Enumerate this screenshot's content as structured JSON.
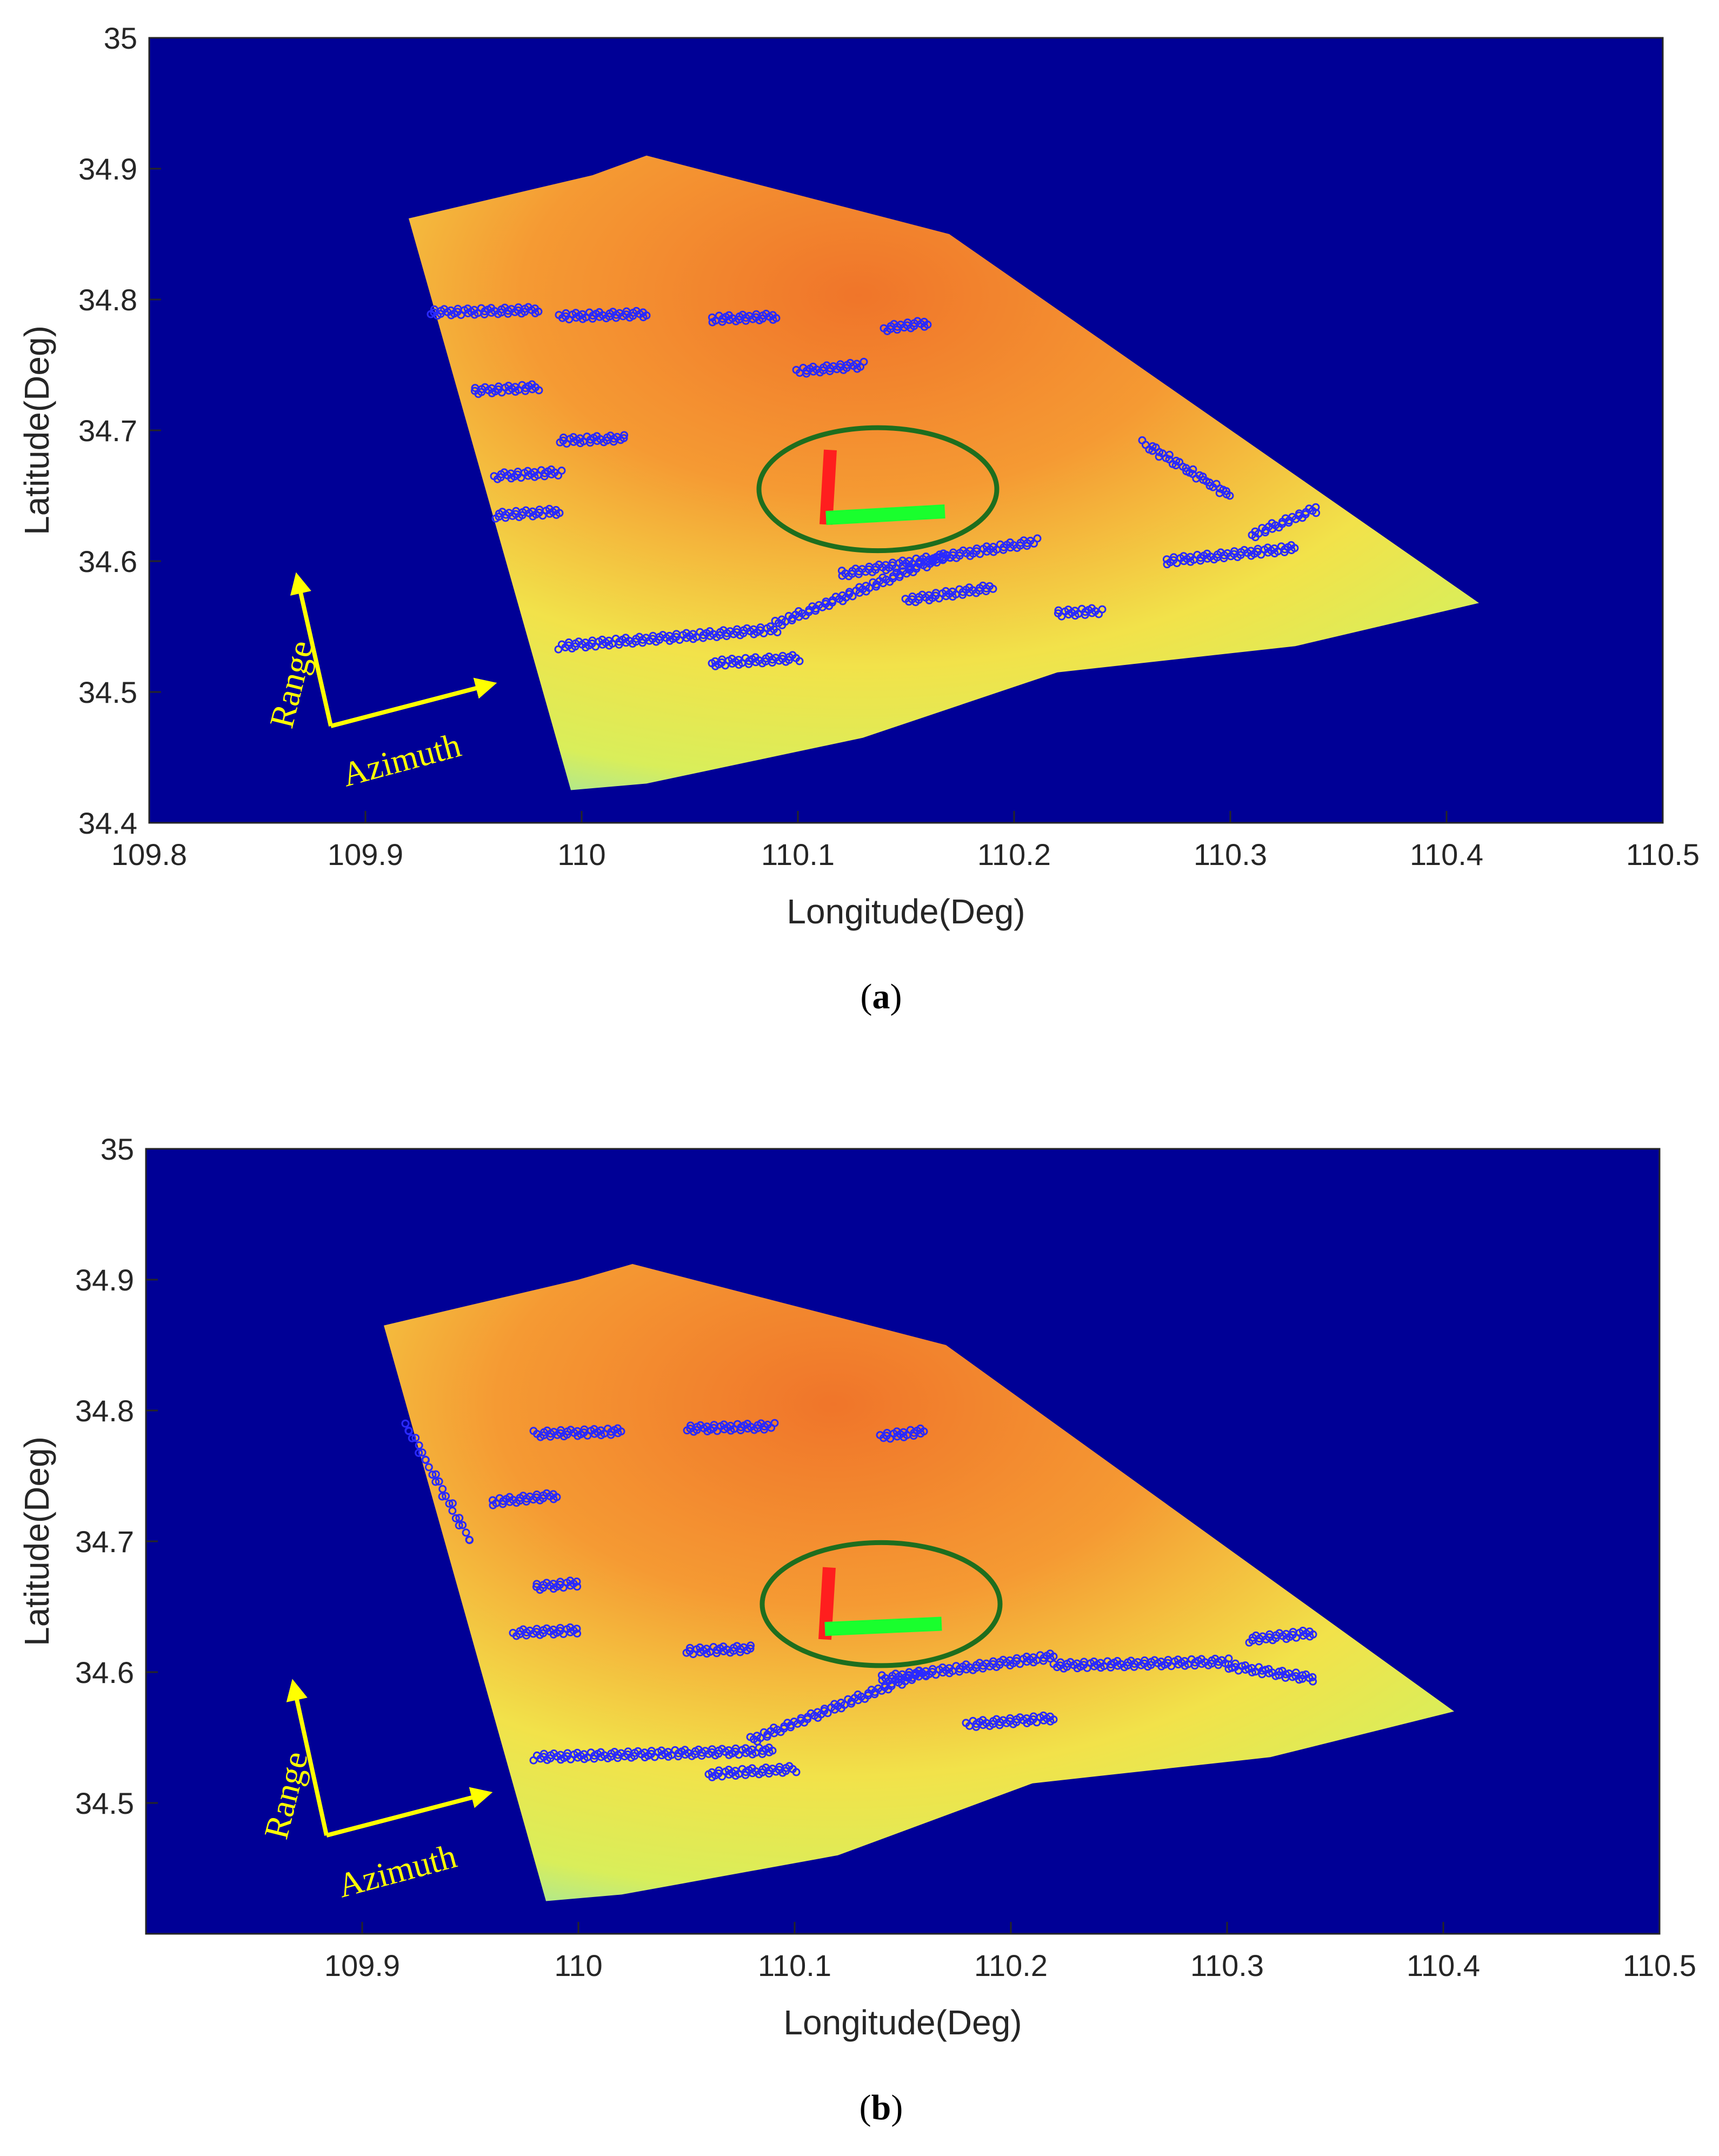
{
  "colors": {
    "background": "#000096",
    "swath_low": "#7ee3c6",
    "swath_mid": "#f2ec50",
    "swath_high": "#ef7a2c",
    "points": "#2a2aff",
    "ellipse": "#1e6e1e",
    "range_vector": "#ff1e1e",
    "azimuth_vector": "#19ff2d",
    "direction_arrows": "#ffff00"
  },
  "chart_data": [
    {
      "panel": "a",
      "type": "scatter",
      "caption": {
        "open": "(",
        "letter": "a",
        "close": ")"
      },
      "xlabel": "Longitude(Deg)",
      "ylabel": "Latitude(Deg)",
      "xlim": [
        109.8,
        110.5
      ],
      "ylim": [
        34.4,
        35.0
      ],
      "xticks": [
        "109.8",
        "109.9",
        "110",
        "110.1",
        "110.2",
        "110.3",
        "110.4",
        "110.5"
      ],
      "yticks": [
        "34.4",
        "34.5",
        "34.6",
        "34.7",
        "34.8",
        "34.9",
        "35"
      ],
      "grid": false,
      "direction_labels": {
        "range": "Range",
        "azimuth": "Azimuth"
      },
      "swath_polygon": [
        [
          109.92,
          34.862
        ],
        [
          110.005,
          34.895
        ],
        [
          110.03,
          34.91
        ],
        [
          110.17,
          34.85
        ],
        [
          110.415,
          34.568
        ],
        [
          110.33,
          34.535
        ],
        [
          110.22,
          34.515
        ],
        [
          110.13,
          34.465
        ],
        [
          110.03,
          34.43
        ],
        [
          109.995,
          34.425
        ]
      ],
      "ellipse": {
        "center": [
          110.137,
          34.655
        ],
        "radius_x": 0.055,
        "radius_y": 0.047
      },
      "range_vector": {
        "from": [
          110.113,
          34.628
        ],
        "to": [
          110.115,
          34.685
        ]
      },
      "azimuth_vector": {
        "from": [
          110.113,
          34.633
        ],
        "to": [
          110.168,
          34.638
        ]
      },
      "point_tracks": [
        {
          "x0": 109.99,
          "x1": 110.09,
          "y0": 34.535,
          "y1": 34.548
        },
        {
          "x0": 110.06,
          "x1": 110.1,
          "y0": 34.522,
          "y1": 34.526
        },
        {
          "x0": 110.09,
          "x1": 110.17,
          "y0": 34.552,
          "y1": 34.605
        },
        {
          "x0": 110.12,
          "x1": 110.21,
          "y0": 34.59,
          "y1": 34.615
        },
        {
          "x0": 110.15,
          "x1": 110.19,
          "y0": 34.57,
          "y1": 34.58
        },
        {
          "x0": 110.27,
          "x1": 110.33,
          "y0": 34.6,
          "y1": 34.61
        },
        {
          "x0": 110.31,
          "x1": 110.34,
          "y0": 34.62,
          "y1": 34.64
        },
        {
          "x0": 110.26,
          "x1": 110.3,
          "y0": 34.69,
          "y1": 34.65
        },
        {
          "x0": 109.93,
          "x1": 109.98,
          "y0": 34.79,
          "y1": 34.792
        },
        {
          "x0": 109.99,
          "x1": 110.03,
          "y0": 34.787,
          "y1": 34.789
        },
        {
          "x0": 110.06,
          "x1": 110.09,
          "y0": 34.785,
          "y1": 34.787
        },
        {
          "x0": 110.14,
          "x1": 110.16,
          "y0": 34.778,
          "y1": 34.782
        },
        {
          "x0": 109.95,
          "x1": 109.98,
          "y0": 34.73,
          "y1": 34.733
        },
        {
          "x0": 109.99,
          "x1": 110.02,
          "y0": 34.692,
          "y1": 34.694
        },
        {
          "x0": 110.1,
          "x1": 110.13,
          "y0": 34.745,
          "y1": 34.75
        },
        {
          "x0": 109.96,
          "x1": 109.99,
          "y0": 34.635,
          "y1": 34.638
        },
        {
          "x0": 109.96,
          "x1": 109.99,
          "y0": 34.665,
          "y1": 34.668
        },
        {
          "x0": 110.22,
          "x1": 110.24,
          "y0": 34.56,
          "y1": 34.562
        }
      ]
    },
    {
      "panel": "b",
      "type": "scatter",
      "caption": {
        "open": "(",
        "letter": "b",
        "close": ")"
      },
      "xlabel": "Longitude(Deg)",
      "ylabel": "Latitude(Deg)",
      "xlim": [
        109.8,
        110.5
      ],
      "ylim": [
        34.4,
        35.0
      ],
      "xticks": [
        "",
        "109.9",
        "110",
        "110.1",
        "110.2",
        "110.3",
        "110.4",
        "110.5"
      ],
      "yticks": [
        "",
        "34.5",
        "34.6",
        "34.7",
        "34.8",
        "34.9",
        "35"
      ],
      "grid": false,
      "direction_labels": {
        "range": "Range",
        "azimuth": "Azimuth"
      },
      "swath_polygon": [
        [
          109.91,
          34.865
        ],
        [
          110.0,
          34.9
        ],
        [
          110.025,
          34.912
        ],
        [
          110.17,
          34.85
        ],
        [
          110.405,
          34.57
        ],
        [
          110.32,
          34.535
        ],
        [
          110.21,
          34.515
        ],
        [
          110.12,
          34.46
        ],
        [
          110.02,
          34.43
        ],
        [
          109.985,
          34.425
        ]
      ],
      "ellipse": {
        "center": [
          110.14,
          34.652
        ],
        "radius_x": 0.055,
        "radius_y": 0.047
      },
      "range_vector": {
        "from": [
          110.114,
          34.625
        ],
        "to": [
          110.116,
          34.68
        ]
      },
      "azimuth_vector": {
        "from": [
          110.114,
          34.633
        ],
        "to": [
          110.168,
          34.637
        ]
      },
      "point_tracks": [
        {
          "x0": 109.98,
          "x1": 110.09,
          "y0": 34.535,
          "y1": 34.54
        },
        {
          "x0": 110.06,
          "x1": 110.1,
          "y0": 34.522,
          "y1": 34.526
        },
        {
          "x0": 110.08,
          "x1": 110.16,
          "y0": 34.548,
          "y1": 34.6
        },
        {
          "x0": 110.14,
          "x1": 110.22,
          "y0": 34.595,
          "y1": 34.612
        },
        {
          "x0": 110.22,
          "x1": 110.3,
          "y0": 34.605,
          "y1": 34.608
        },
        {
          "x0": 110.3,
          "x1": 110.34,
          "y0": 34.605,
          "y1": 34.595
        },
        {
          "x0": 109.92,
          "x1": 109.95,
          "y0": 34.79,
          "y1": 34.7
        },
        {
          "x0": 109.98,
          "x1": 110.02,
          "y0": 34.782,
          "y1": 34.784
        },
        {
          "x0": 110.05,
          "x1": 110.09,
          "y0": 34.786,
          "y1": 34.788
        },
        {
          "x0": 110.14,
          "x1": 110.16,
          "y0": 34.78,
          "y1": 34.784
        },
        {
          "x0": 109.96,
          "x1": 109.99,
          "y0": 34.73,
          "y1": 34.735
        },
        {
          "x0": 109.97,
          "x1": 110.0,
          "y0": 34.63,
          "y1": 34.632
        },
        {
          "x0": 109.98,
          "x1": 110.0,
          "y0": 34.665,
          "y1": 34.668
        },
        {
          "x0": 110.05,
          "x1": 110.08,
          "y0": 34.616,
          "y1": 34.618
        },
        {
          "x0": 110.18,
          "x1": 110.22,
          "y0": 34.56,
          "y1": 34.565
        },
        {
          "x0": 110.31,
          "x1": 110.34,
          "y0": 34.625,
          "y1": 34.63
        }
      ]
    }
  ]
}
